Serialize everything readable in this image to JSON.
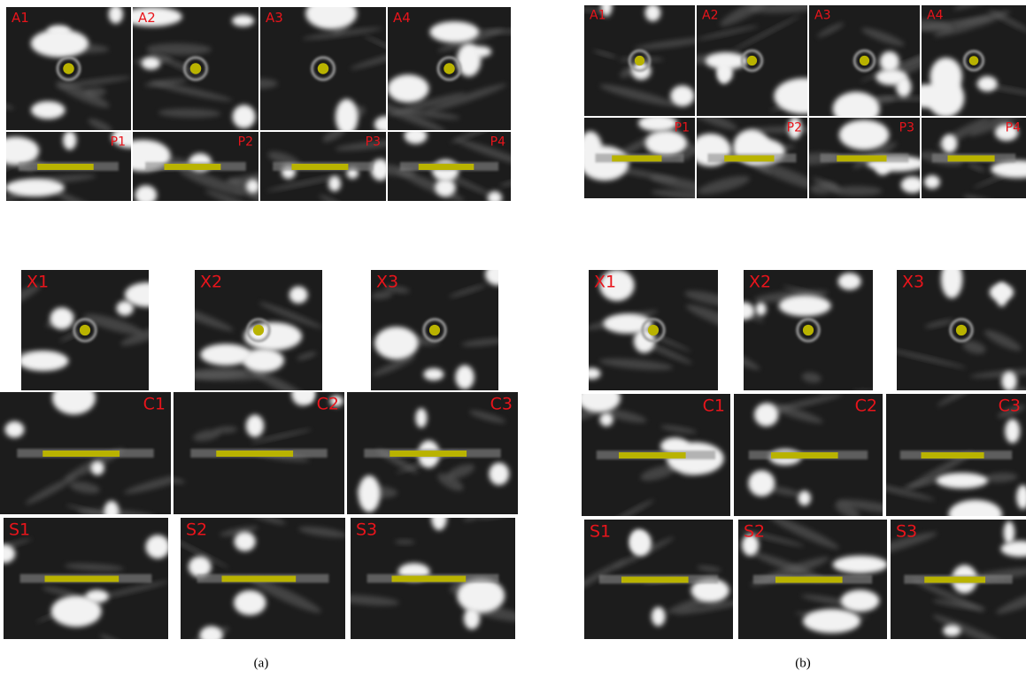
{
  "figures": [
    {
      "caption": "(a)",
      "rows": [
        [
          "A1",
          "A2",
          "A3",
          "A4"
        ],
        [
          "P1",
          "P2",
          "P3",
          "P4"
        ],
        [
          "X1",
          "X2",
          "X3"
        ],
        [
          "C1",
          "C2",
          "C3"
        ],
        [
          "S1",
          "S2",
          "S3"
        ]
      ]
    },
    {
      "caption": "(b)",
      "rows": [
        [
          "A1",
          "A2",
          "A3",
          "A4"
        ],
        [
          "P1",
          "P2",
          "P3",
          "P4"
        ],
        [
          "X1",
          "X2",
          "X3"
        ],
        [
          "C1",
          "C2",
          "C3"
        ],
        [
          "S1",
          "S2",
          "S3"
        ]
      ]
    }
  ]
}
